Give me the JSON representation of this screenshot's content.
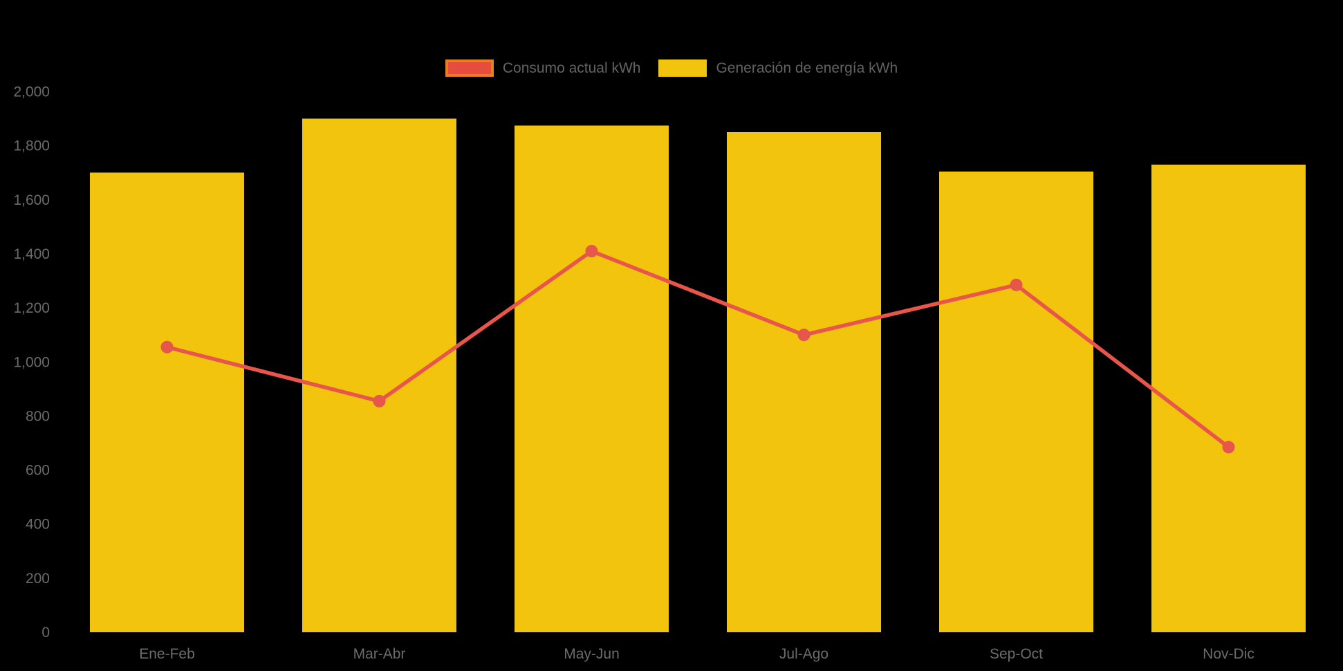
{
  "chart_data": {
    "type": "combo",
    "title": "",
    "categories": [
      "Ene-Feb",
      "Mar-Abr",
      "May-Jun",
      "Jul-Ago",
      "Sep-Oct",
      "Nov-Dic"
    ],
    "series": [
      {
        "name": "Consumo actual kWh",
        "type": "line",
        "values": [
          1055,
          855,
          1410,
          1100,
          1285,
          685
        ],
        "color": "#E8564B",
        "point_color": "#E8564B",
        "point_border": "#E2574C",
        "legend_fill": "#E74C3C",
        "legend_border": "#E67E22"
      },
      {
        "name": "Generación de energía kWh",
        "type": "bar",
        "values": [
          1700,
          1900,
          1875,
          1850,
          1705,
          1730
        ],
        "color": "#F2C40E",
        "legend_fill": "#F2C40E",
        "legend_border": "#F2C40E"
      }
    ],
    "y_axis": {
      "min": 0,
      "max": 2000,
      "step": 200,
      "tick_labels": [
        "0",
        "200",
        "400",
        "600",
        "800",
        "1,000",
        "1,200",
        "1,400",
        "1,600",
        "1,800",
        "2,000"
      ]
    },
    "x_axis": {
      "label": ""
    },
    "legend_position": "top",
    "grid": false,
    "background": "#000000",
    "text_color": "#6B6B6B"
  }
}
